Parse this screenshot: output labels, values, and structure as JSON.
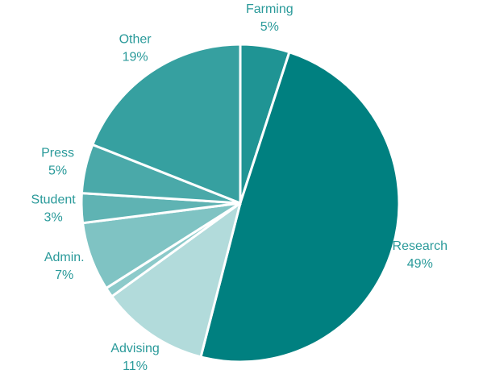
{
  "chart_data": {
    "type": "pie",
    "categories": [
      "Farming",
      "Research",
      "Advising",
      null,
      "Admin.",
      "Student",
      "Press",
      "Other"
    ],
    "values": [
      5,
      49,
      11,
      1,
      7,
      3,
      5,
      19
    ],
    "value_labels": [
      "5%",
      "49%",
      "11%",
      null,
      "7%",
      "3%",
      "5%",
      "19%"
    ],
    "colors": [
      "#1f9494",
      "#008080",
      "#b2dbdb",
      "#8ccaca",
      "#7fc3c3",
      "#5fb3b3",
      "#4aa9a9",
      "#36a0a0"
    ]
  }
}
